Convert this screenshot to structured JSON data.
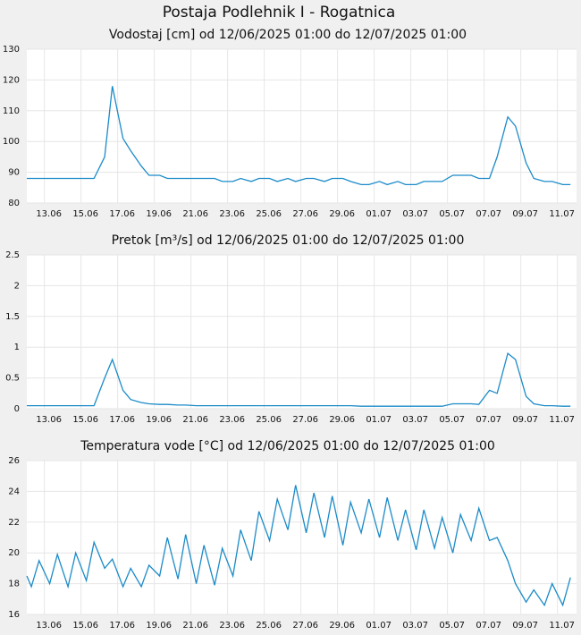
{
  "title": "Postaja Podlehnik I - Rogatnica",
  "chart_data": [
    {
      "type": "line",
      "title": "Vodostaj [cm] od 12/06/2025 01:00 do 12/07/2025 01:00",
      "x": [
        "2025-06-12T01:00",
        "2025-06-12T07:00",
        "2025-06-12T17:00",
        "2025-06-13T07:00",
        "2025-06-13T17:00",
        "2025-06-14T07:00",
        "2025-06-14T17:00",
        "2025-06-15T07:00",
        "2025-06-15T17:00",
        "2025-06-16T07:00",
        "2025-06-16T17:00",
        "2025-06-17T07:00",
        "2025-06-17T17:00",
        "2025-06-18T07:00",
        "2025-06-18T17:00",
        "2025-06-19T07:00",
        "2025-06-19T17:00",
        "2025-06-20T07:00",
        "2025-06-20T17:00",
        "2025-06-21T07:00",
        "2025-06-21T17:00",
        "2025-06-22T07:00",
        "2025-06-22T17:00",
        "2025-06-23T07:00",
        "2025-06-23T17:00",
        "2025-06-24T07:00",
        "2025-06-24T17:00",
        "2025-06-25T07:00",
        "2025-06-25T17:00",
        "2025-06-26T07:00",
        "2025-06-26T17:00",
        "2025-06-27T07:00",
        "2025-06-27T17:00",
        "2025-06-28T07:00",
        "2025-06-28T17:00",
        "2025-06-29T07:00",
        "2025-06-29T17:00",
        "2025-06-30T07:00",
        "2025-06-30T17:00",
        "2025-07-01T07:00",
        "2025-07-01T17:00",
        "2025-07-02T07:00",
        "2025-07-02T17:00",
        "2025-07-03T07:00",
        "2025-07-03T17:00",
        "2025-07-04T07:00",
        "2025-07-04T17:00",
        "2025-07-05T07:00",
        "2025-07-05T17:00",
        "2025-07-06T07:00",
        "2025-07-06T17:00",
        "2025-07-07T07:00",
        "2025-07-07T17:00",
        "2025-07-08T07:00",
        "2025-07-08T17:00",
        "2025-07-09T07:00",
        "2025-07-09T17:00",
        "2025-07-10T07:00",
        "2025-07-10T17:00",
        "2025-07-11T07:00",
        "2025-07-11T17:00"
      ],
      "series": [
        {
          "color": "#1b8bc8",
          "values": [
            88,
            88,
            88,
            88,
            88,
            88,
            88,
            88,
            88,
            95,
            118,
            101,
            97,
            92,
            89,
            89,
            88,
            88,
            88,
            88,
            88,
            88,
            87,
            87,
            88,
            87,
            88,
            88,
            87,
            88,
            87,
            88,
            88,
            87,
            88,
            88,
            87,
            86,
            86,
            87,
            86,
            87,
            86,
            86,
            87,
            87,
            87,
            89,
            89,
            89,
            88,
            88,
            95,
            108,
            105,
            93,
            88,
            87,
            87,
            86,
            86
          ]
        }
      ],
      "xlim": [
        "2025-06-12T01:00",
        "2025-07-12T01:00"
      ],
      "xticks": [
        {
          "value": "2025-06-13T00:00",
          "label": "13.06"
        },
        {
          "value": "2025-06-15T00:00",
          "label": "15.06"
        },
        {
          "value": "2025-06-17T00:00",
          "label": "17.06"
        },
        {
          "value": "2025-06-19T00:00",
          "label": "19.06"
        },
        {
          "value": "2025-06-21T00:00",
          "label": "21.06"
        },
        {
          "value": "2025-06-23T00:00",
          "label": "23.06"
        },
        {
          "value": "2025-06-25T00:00",
          "label": "25.06"
        },
        {
          "value": "2025-06-27T00:00",
          "label": "27.06"
        },
        {
          "value": "2025-06-29T00:00",
          "label": "29.06"
        },
        {
          "value": "2025-07-01T00:00",
          "label": "01.07"
        },
        {
          "value": "2025-07-03T00:00",
          "label": "03.07"
        },
        {
          "value": "2025-07-05T00:00",
          "label": "05.07"
        },
        {
          "value": "2025-07-07T00:00",
          "label": "07.07"
        },
        {
          "value": "2025-07-09T00:00",
          "label": "09.07"
        },
        {
          "value": "2025-07-11T00:00",
          "label": "11.07"
        }
      ],
      "ylim": [
        80,
        130
      ],
      "yticks": [
        80,
        90,
        100,
        110,
        120,
        130
      ],
      "grid": true
    },
    {
      "type": "line",
      "title": "Pretok [m³/s] od 12/06/2025 01:00 do 12/07/2025 01:00",
      "x": [
        "2025-06-12T01:00",
        "2025-06-12T07:00",
        "2025-06-12T17:00",
        "2025-06-13T07:00",
        "2025-06-13T17:00",
        "2025-06-14T07:00",
        "2025-06-14T17:00",
        "2025-06-15T07:00",
        "2025-06-15T17:00",
        "2025-06-16T07:00",
        "2025-06-16T17:00",
        "2025-06-17T07:00",
        "2025-06-17T17:00",
        "2025-06-18T07:00",
        "2025-06-18T17:00",
        "2025-06-19T07:00",
        "2025-06-19T17:00",
        "2025-06-20T07:00",
        "2025-06-20T17:00",
        "2025-06-21T07:00",
        "2025-06-21T17:00",
        "2025-06-22T07:00",
        "2025-06-22T17:00",
        "2025-06-23T07:00",
        "2025-06-23T17:00",
        "2025-06-24T07:00",
        "2025-06-24T17:00",
        "2025-06-25T07:00",
        "2025-06-25T17:00",
        "2025-06-26T07:00",
        "2025-06-26T17:00",
        "2025-06-27T07:00",
        "2025-06-27T17:00",
        "2025-06-28T07:00",
        "2025-06-28T17:00",
        "2025-06-29T07:00",
        "2025-06-29T17:00",
        "2025-06-30T07:00",
        "2025-06-30T17:00",
        "2025-07-01T07:00",
        "2025-07-01T17:00",
        "2025-07-02T07:00",
        "2025-07-02T17:00",
        "2025-07-03T07:00",
        "2025-07-03T17:00",
        "2025-07-04T07:00",
        "2025-07-04T17:00",
        "2025-07-05T07:00",
        "2025-07-05T17:00",
        "2025-07-06T07:00",
        "2025-07-06T17:00",
        "2025-07-07T07:00",
        "2025-07-07T17:00",
        "2025-07-08T07:00",
        "2025-07-08T17:00",
        "2025-07-09T07:00",
        "2025-07-09T17:00",
        "2025-07-10T07:00",
        "2025-07-10T17:00",
        "2025-07-11T07:00",
        "2025-07-11T17:00"
      ],
      "series": [
        {
          "color": "#1b8bc8",
          "values": [
            0.05,
            0.05,
            0.05,
            0.05,
            0.05,
            0.05,
            0.05,
            0.05,
            0.05,
            0.5,
            0.8,
            0.3,
            0.15,
            0.1,
            0.08,
            0.07,
            0.07,
            0.06,
            0.06,
            0.05,
            0.05,
            0.05,
            0.05,
            0.05,
            0.05,
            0.05,
            0.05,
            0.05,
            0.05,
            0.05,
            0.05,
            0.05,
            0.05,
            0.05,
            0.05,
            0.05,
            0.05,
            0.04,
            0.04,
            0.04,
            0.04,
            0.04,
            0.04,
            0.04,
            0.04,
            0.04,
            0.04,
            0.08,
            0.08,
            0.08,
            0.07,
            0.3,
            0.25,
            0.9,
            0.8,
            0.2,
            0.08,
            0.05,
            0.05,
            0.04,
            0.04
          ]
        }
      ],
      "xlim": [
        "2025-06-12T01:00",
        "2025-07-12T01:00"
      ],
      "xticks": [
        {
          "value": "2025-06-13T00:00",
          "label": "13.06"
        },
        {
          "value": "2025-06-15T00:00",
          "label": "15.06"
        },
        {
          "value": "2025-06-17T00:00",
          "label": "17.06"
        },
        {
          "value": "2025-06-19T00:00",
          "label": "19.06"
        },
        {
          "value": "2025-06-21T00:00",
          "label": "21.06"
        },
        {
          "value": "2025-06-23T00:00",
          "label": "23.06"
        },
        {
          "value": "2025-06-25T00:00",
          "label": "25.06"
        },
        {
          "value": "2025-06-27T00:00",
          "label": "27.06"
        },
        {
          "value": "2025-06-29T00:00",
          "label": "29.06"
        },
        {
          "value": "2025-07-01T00:00",
          "label": "01.07"
        },
        {
          "value": "2025-07-03T00:00",
          "label": "03.07"
        },
        {
          "value": "2025-07-05T00:00",
          "label": "05.07"
        },
        {
          "value": "2025-07-07T00:00",
          "label": "07.07"
        },
        {
          "value": "2025-07-09T00:00",
          "label": "09.07"
        },
        {
          "value": "2025-07-11T00:00",
          "label": "11.07"
        }
      ],
      "ylim": [
        0,
        2.5
      ],
      "yticks": [
        0,
        0.5,
        1,
        1.5,
        2,
        2.5
      ],
      "grid": true
    },
    {
      "type": "line",
      "title": "Temperatura vode [°C] od 12/06/2025 01:00 do 12/07/2025 01:00",
      "x": [
        "2025-06-12T01:00",
        "2025-06-12T07:00",
        "2025-06-12T17:00",
        "2025-06-13T07:00",
        "2025-06-13T17:00",
        "2025-06-14T07:00",
        "2025-06-14T17:00",
        "2025-06-15T07:00",
        "2025-06-15T17:00",
        "2025-06-16T07:00",
        "2025-06-16T17:00",
        "2025-06-17T07:00",
        "2025-06-17T17:00",
        "2025-06-18T07:00",
        "2025-06-18T17:00",
        "2025-06-19T07:00",
        "2025-06-19T17:00",
        "2025-06-20T07:00",
        "2025-06-20T17:00",
        "2025-06-21T07:00",
        "2025-06-21T17:00",
        "2025-06-22T07:00",
        "2025-06-22T17:00",
        "2025-06-23T07:00",
        "2025-06-23T17:00",
        "2025-06-24T07:00",
        "2025-06-24T17:00",
        "2025-06-25T07:00",
        "2025-06-25T17:00",
        "2025-06-26T07:00",
        "2025-06-26T17:00",
        "2025-06-27T07:00",
        "2025-06-27T17:00",
        "2025-06-28T07:00",
        "2025-06-28T17:00",
        "2025-06-29T07:00",
        "2025-06-29T17:00",
        "2025-06-30T07:00",
        "2025-06-30T17:00",
        "2025-07-01T07:00",
        "2025-07-01T17:00",
        "2025-07-02T07:00",
        "2025-07-02T17:00",
        "2025-07-03T07:00",
        "2025-07-03T17:00",
        "2025-07-04T07:00",
        "2025-07-04T17:00",
        "2025-07-05T07:00",
        "2025-07-05T17:00",
        "2025-07-06T07:00",
        "2025-07-06T17:00",
        "2025-07-07T07:00",
        "2025-07-07T17:00",
        "2025-07-08T07:00",
        "2025-07-08T17:00",
        "2025-07-09T07:00",
        "2025-07-09T17:00",
        "2025-07-10T07:00",
        "2025-07-10T17:00",
        "2025-07-11T07:00",
        "2025-07-11T17:00"
      ],
      "series": [
        {
          "color": "#1b8bc8",
          "values": [
            18.5,
            17.8,
            19.5,
            18.0,
            19.9,
            17.8,
            20.0,
            18.2,
            20.7,
            19.0,
            19.6,
            17.8,
            19.0,
            17.8,
            19.2,
            18.5,
            21.0,
            18.3,
            21.2,
            18.0,
            20.5,
            17.9,
            20.3,
            18.5,
            21.5,
            19.5,
            22.7,
            20.8,
            23.5,
            21.5,
            24.4,
            21.3,
            23.9,
            21.0,
            23.7,
            20.5,
            23.3,
            21.3,
            23.5,
            21.0,
            23.6,
            20.8,
            22.8,
            20.2,
            22.8,
            20.3,
            22.3,
            20.0,
            22.5,
            20.8,
            22.9,
            20.8,
            21.0,
            19.5,
            18.0,
            16.8,
            17.6,
            16.6,
            18.0,
            16.6,
            18.4
          ]
        }
      ],
      "xlim": [
        "2025-06-12T01:00",
        "2025-07-12T01:00"
      ],
      "xticks": [
        {
          "value": "2025-06-13T00:00",
          "label": "13.06"
        },
        {
          "value": "2025-06-15T00:00",
          "label": "15.06"
        },
        {
          "value": "2025-06-17T00:00",
          "label": "17.06"
        },
        {
          "value": "2025-06-19T00:00",
          "label": "19.06"
        },
        {
          "value": "2025-06-21T00:00",
          "label": "21.06"
        },
        {
          "value": "2025-06-23T00:00",
          "label": "23.06"
        },
        {
          "value": "2025-06-25T00:00",
          "label": "25.06"
        },
        {
          "value": "2025-06-27T00:00",
          "label": "27.06"
        },
        {
          "value": "2025-06-29T00:00",
          "label": "29.06"
        },
        {
          "value": "2025-07-01T00:00",
          "label": "01.07"
        },
        {
          "value": "2025-07-03T00:00",
          "label": "03.07"
        },
        {
          "value": "2025-07-05T00:00",
          "label": "05.07"
        },
        {
          "value": "2025-07-07T00:00",
          "label": "07.07"
        },
        {
          "value": "2025-07-09T00:00",
          "label": "09.07"
        },
        {
          "value": "2025-07-11T00:00",
          "label": "11.07"
        }
      ],
      "ylim": [
        16,
        26
      ],
      "yticks": [
        16,
        18,
        20,
        22,
        24,
        26
      ],
      "grid": true
    }
  ]
}
